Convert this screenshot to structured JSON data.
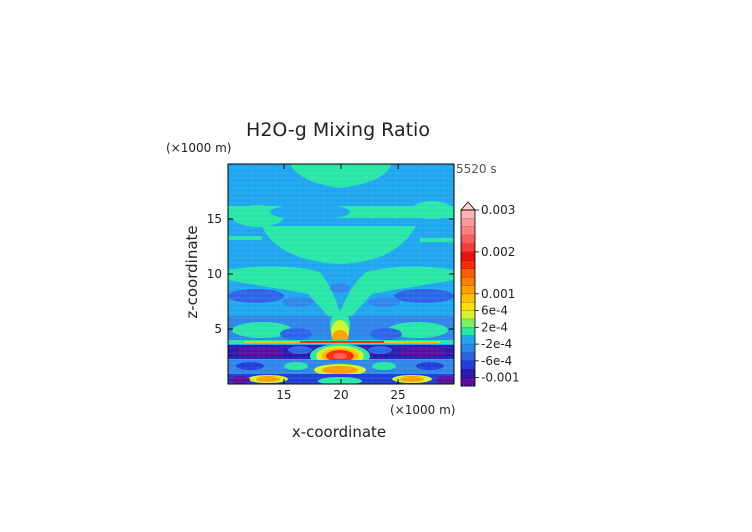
{
  "chart_data": {
    "type": "heatmap",
    "title": "H2O-g Mixing Ratio",
    "time_label": "5520 s",
    "xlabel": "x-coordinate",
    "ylabel": "z-coordinate",
    "x_unit": "(×1000 m)",
    "y_unit": "(×1000 m)",
    "xlim": [
      10.1,
      29.9
    ],
    "ylim": [
      0,
      20
    ],
    "xticks": [
      15,
      20,
      25
    ],
    "yticks": [
      5,
      10,
      15
    ],
    "colorbar": {
      "labels": [
        "0.003",
        "0.002",
        "0.001",
        "6e-4",
        "2e-4",
        "-2e-4",
        "-6e-4",
        "-0.001"
      ],
      "label_values": [
        0.003,
        0.002,
        0.001,
        0.0006,
        0.0002,
        -0.0002,
        -0.0006,
        -0.001
      ],
      "levels": [
        -0.0012,
        -0.001,
        -0.0008,
        -0.0006,
        -0.0004,
        -0.0002,
        0.0,
        0.0002,
        0.0004,
        0.0006,
        0.0008,
        0.001,
        0.0012,
        0.0014,
        0.0016,
        0.0018,
        0.002,
        0.0022,
        0.0024,
        0.0026,
        0.0028,
        0.003
      ],
      "colors": [
        "#5a10a0",
        "#2a1ab0",
        "#1f3fd8",
        "#2c63e8",
        "#2f86ea",
        "#1fa6f0",
        "#28e6a8",
        "#7ef060",
        "#d2f428",
        "#ffe000",
        "#ffc000",
        "#ffa000",
        "#ff7f00",
        "#ff5d00",
        "#ff2a00",
        "#ee1010",
        "#ff3a3a",
        "#ff5e5e",
        "#ff7f7f",
        "#ff9a9a",
        "#ffb4b4"
      ],
      "extend_color": "#ffd2d2"
    }
  }
}
